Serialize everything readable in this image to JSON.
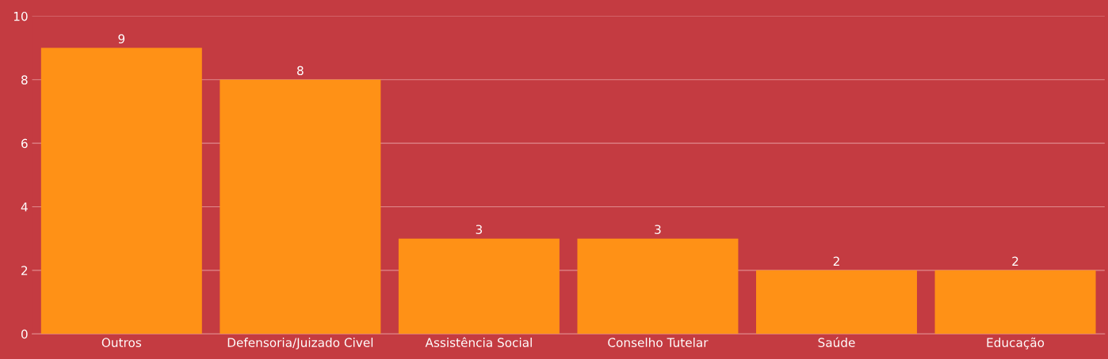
{
  "chart_data": {
    "type": "bar",
    "categories": [
      "Outros",
      "Defensoria/Juizado Civel",
      "Assistência Social",
      "Conselho Tutelar",
      "Saúde",
      "Educação"
    ],
    "values": [
      9,
      8,
      3,
      3,
      2,
      2
    ],
    "color": "#ff9116",
    "ylim": [
      0,
      10
    ],
    "yticks": [
      0,
      2,
      4,
      6,
      8,
      10
    ],
    "grid": "y",
    "data_labels": true
  }
}
